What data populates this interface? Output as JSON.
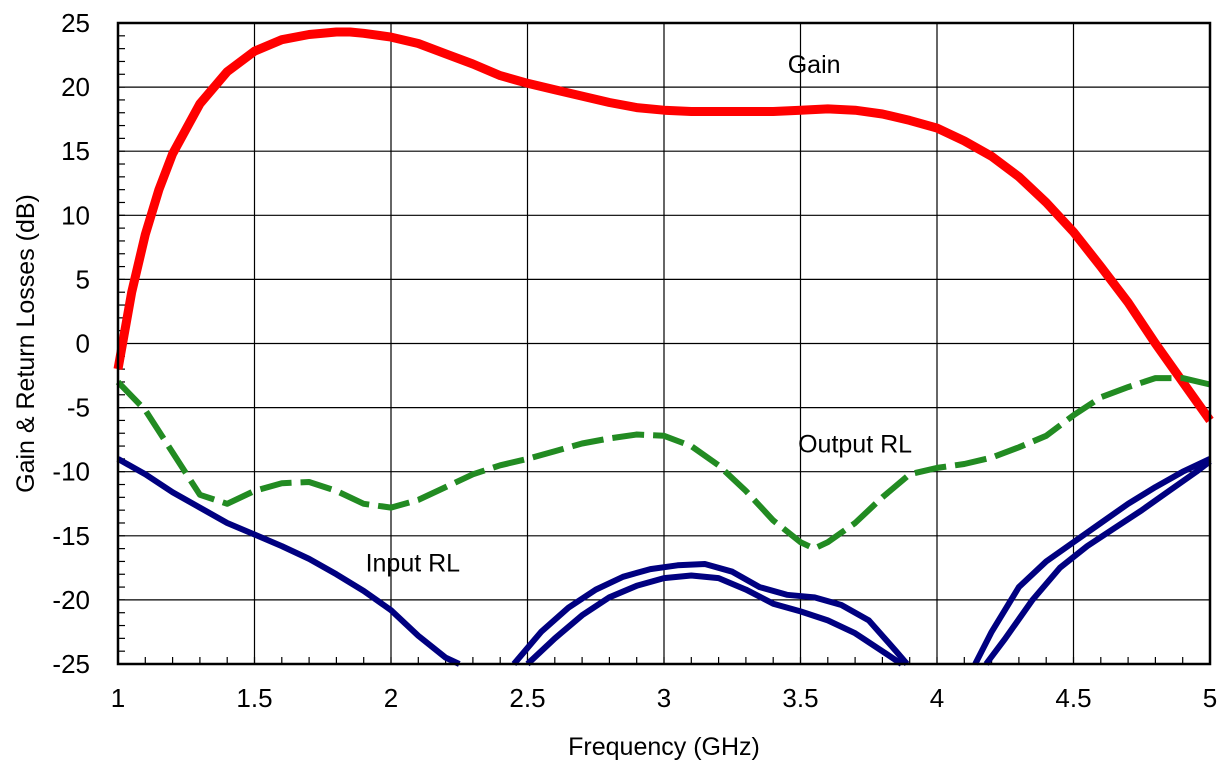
{
  "chart_data": {
    "type": "line",
    "xlabel": "Frequency (GHz)",
    "ylabel": "Gain & Return Losses (dB)",
    "xlim": [
      1,
      5
    ],
    "ylim": [
      -25,
      25
    ],
    "x_ticks": [
      1,
      1.5,
      2,
      2.5,
      3,
      3.5,
      4,
      4.5,
      5
    ],
    "y_ticks": [
      25,
      20,
      15,
      10,
      5,
      0,
      -5,
      -10,
      -15,
      -20,
      -25
    ],
    "x_tick_labels": [
      "1",
      "1.5",
      "2",
      "2.5",
      "3",
      "3.5",
      "4",
      "4.5",
      "5"
    ],
    "y_tick_labels": [
      "25",
      "20",
      "15",
      "10",
      "5",
      "0",
      "-5",
      "-10",
      "-15",
      "-20",
      "-25"
    ],
    "grid": true,
    "legend": "none",
    "annotations": [
      {
        "text": "Gain",
        "x": 3.55,
        "y": 21.1
      },
      {
        "text": "Output RL",
        "x": 3.7,
        "y": -8.5
      },
      {
        "text": "Input RL",
        "x": 2.08,
        "y": -17.8
      }
    ],
    "series": [
      {
        "color": "#ff0000",
        "style": "solid",
        "x": [
          1.0,
          1.05,
          1.1,
          1.15,
          1.2,
          1.3,
          1.4,
          1.5,
          1.6,
          1.7,
          1.8,
          1.85,
          1.9,
          2.0,
          2.1,
          2.2,
          2.3,
          2.4,
          2.5,
          2.6,
          2.7,
          2.8,
          2.9,
          3.0,
          3.1,
          3.2,
          3.3,
          3.4,
          3.5,
          3.6,
          3.7,
          3.8,
          3.9,
          4.0,
          4.1,
          4.2,
          4.3,
          4.4,
          4.5,
          4.6,
          4.7,
          4.8,
          4.9,
          5.0
        ],
        "values": [
          -2,
          4,
          8.5,
          12,
          14.8,
          18.7,
          21.2,
          22.8,
          23.7,
          24.1,
          24.3,
          24.3,
          24.2,
          23.9,
          23.4,
          22.6,
          21.8,
          20.9,
          20.3,
          19.8,
          19.3,
          18.8,
          18.4,
          18.2,
          18.1,
          18.1,
          18.1,
          18.1,
          18.2,
          18.3,
          18.2,
          17.9,
          17.4,
          16.8,
          15.8,
          14.6,
          13.0,
          11.0,
          8.7,
          6.0,
          3.2,
          0.0,
          -3.0,
          -6.0
        ]
      },
      {
        "color": "#228b22",
        "style": "dashed",
        "x": [
          1.0,
          1.1,
          1.2,
          1.3,
          1.4,
          1.5,
          1.6,
          1.7,
          1.8,
          1.9,
          2.0,
          2.1,
          2.2,
          2.3,
          2.4,
          2.5,
          2.6,
          2.7,
          2.8,
          2.9,
          3.0,
          3.1,
          3.2,
          3.3,
          3.4,
          3.5,
          3.55,
          3.6,
          3.7,
          3.8,
          3.9,
          4.0,
          4.1,
          4.2,
          4.3,
          4.4,
          4.5,
          4.6,
          4.7,
          4.8,
          4.9,
          5.0
        ],
        "values": [
          -3,
          -5.2,
          -8.5,
          -11.8,
          -12.5,
          -11.5,
          -10.9,
          -10.8,
          -11.5,
          -12.5,
          -12.8,
          -12.2,
          -11.2,
          -10.2,
          -9.5,
          -9.0,
          -8.4,
          -7.8,
          -7.4,
          -7.1,
          -7.2,
          -8.0,
          -9.5,
          -11.5,
          -13.8,
          -15.5,
          -16,
          -15.5,
          -14.0,
          -12.0,
          -10.2,
          -9.7,
          -9.4,
          -8.9,
          -8.1,
          -7.2,
          -5.6,
          -4.2,
          -3.4,
          -2.7,
          -2.7,
          -3.2
        ]
      },
      {
        "color": "#000080",
        "style": "solid",
        "x": [
          1.0,
          1.1,
          1.2,
          1.3,
          1.4,
          1.5,
          1.6,
          1.7,
          1.8,
          1.9,
          2.0,
          2.1,
          2.2,
          2.25
        ],
        "values": [
          -9,
          -10.2,
          -11.6,
          -12.8,
          -14.0,
          -14.9,
          -15.8,
          -16.8,
          -18.0,
          -19.3,
          -20.8,
          -22.8,
          -24.5,
          -25
        ]
      },
      {
        "color": "#000080",
        "style": "solid",
        "x": [
          2.45,
          2.55,
          2.65,
          2.75,
          2.85,
          2.95,
          3.05,
          3.15,
          3.25,
          3.35,
          3.45,
          3.55,
          3.65,
          3.75,
          3.85,
          3.89
        ],
        "values": [
          -25,
          -22.5,
          -20.6,
          -19.2,
          -18.2,
          -17.6,
          -17.3,
          -17.2,
          -17.8,
          -19.0,
          -19.6,
          -19.8,
          -20.4,
          -21.6,
          -24.0,
          -25
        ]
      },
      {
        "color": "#000080",
        "style": "solid",
        "x": [
          2.5,
          2.6,
          2.7,
          2.8,
          2.9,
          3.0,
          3.1,
          3.2,
          3.3,
          3.4,
          3.5,
          3.6,
          3.7,
          3.8,
          3.87
        ],
        "values": [
          -25,
          -23.0,
          -21.2,
          -19.8,
          -18.9,
          -18.3,
          -18.1,
          -18.3,
          -19.2,
          -20.3,
          -20.9,
          -21.6,
          -22.6,
          -24.0,
          -25
        ]
      },
      {
        "color": "#000080",
        "style": "solid",
        "x": [
          4.14,
          4.2,
          4.3,
          4.4,
          4.5,
          4.6,
          4.7,
          4.8,
          4.9,
          5.0
        ],
        "values": [
          -25,
          -22.5,
          -19.0,
          -17.0,
          -15.5,
          -14.0,
          -12.5,
          -11.2,
          -10.0,
          -9.0
        ]
      },
      {
        "color": "#000080",
        "style": "solid",
        "x": [
          4.18,
          4.25,
          4.35,
          4.45,
          4.55,
          4.65,
          4.75,
          4.85,
          4.95,
          5.0
        ],
        "values": [
          -25,
          -23.0,
          -20.0,
          -17.5,
          -15.8,
          -14.4,
          -13.0,
          -11.5,
          -10.0,
          -9.2
        ]
      }
    ]
  }
}
